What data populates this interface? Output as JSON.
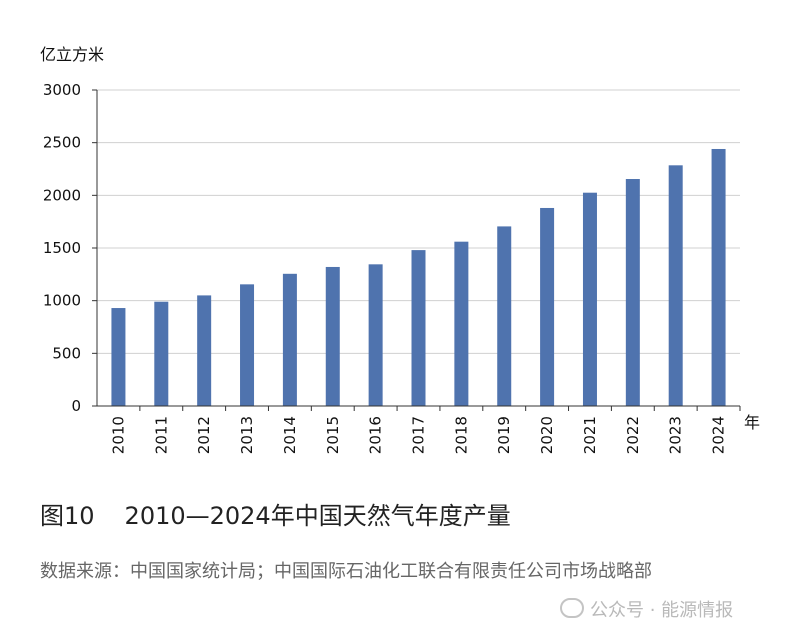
{
  "chart_data": {
    "type": "bar",
    "ylabel": "亿立方米",
    "xlabel": "年",
    "ylim": [
      0,
      3000
    ],
    "yticks": [
      0,
      500,
      1000,
      1500,
      2000,
      2500,
      3000
    ],
    "grid": true,
    "bar_color": "#4f73ae",
    "categories": [
      "2010",
      "2011",
      "2012",
      "2013",
      "2014",
      "2015",
      "2016",
      "2017",
      "2018",
      "2019",
      "2020",
      "2021",
      "2022",
      "2023",
      "2024"
    ],
    "values": [
      930,
      990,
      1050,
      1155,
      1255,
      1320,
      1345,
      1480,
      1560,
      1705,
      1880,
      2025,
      2155,
      2285,
      2440
    ]
  },
  "caption": {
    "figure_no": "图10",
    "title": "2010—2024年中国天然气年度产量"
  },
  "source_text": "数据来源：中国国家统计局；中国国际石油化工联合有限责任公司市场战略部",
  "watermark": "公众号 · 能源情报",
  "icons": {
    "watermark": "wechat-icon"
  }
}
